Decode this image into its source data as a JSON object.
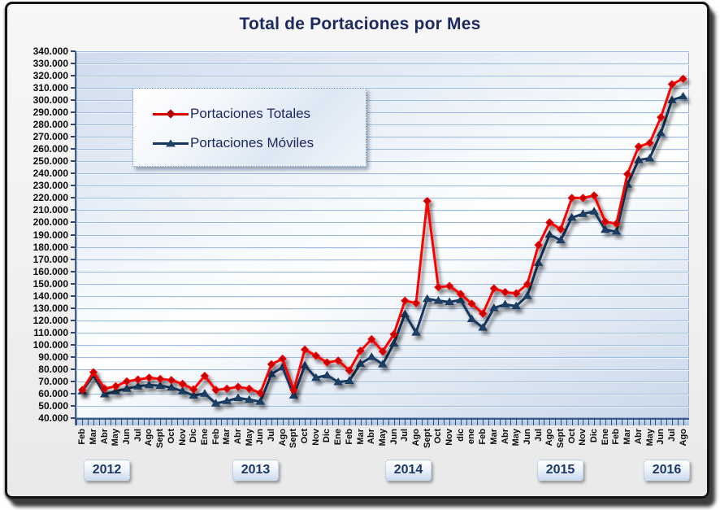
{
  "title": "Total de Portaciones por Mes",
  "legend": {
    "items": [
      {
        "label": "Portaciones Totales",
        "marker": "diamond",
        "color": "#e00000"
      },
      {
        "label": "Portaciones Móviles",
        "marker": "triangle",
        "color": "#17375e"
      }
    ]
  },
  "y_axis": {
    "min": 40000,
    "max": 340000,
    "step": 10000,
    "labels": [
      "340.000",
      "330.000",
      "320.000",
      "310.000",
      "300.000",
      "290.000",
      "280.000",
      "270.000",
      "260.000",
      "250.000",
      "240.000",
      "230.000",
      "220.000",
      "210.000",
      "200.000",
      "190.000",
      "180.000",
      "170.000",
      "160.000",
      "150.000",
      "140.000",
      "130.000",
      "120.000",
      "110.000",
      "100.000",
      "90.000",
      "80.000",
      "70.000",
      "60.000",
      "50.000",
      "40.000"
    ]
  },
  "x_axis": {
    "months": [
      "Feb",
      "Mar",
      "Abr",
      "May",
      "Jun",
      "Jul",
      "Ago",
      "Sept",
      "Oct",
      "Nov",
      "Dic",
      "Ene",
      "Feb",
      "Mar",
      "Abr",
      "May",
      "Jun",
      "Jul",
      "Ago",
      "Sept",
      "Oct",
      "Nov",
      "Dic",
      "Ene",
      "Feb",
      "Mar",
      "Abr",
      "May",
      "Jun",
      "Jul",
      "Ago",
      "Sept",
      "Oct",
      "Nov",
      "dic",
      "ene",
      "Feb",
      "Mar",
      "Abr",
      "May",
      "Jun",
      "Jul",
      "Ago",
      "Sept",
      "Oct",
      "Nov",
      "Dic",
      "Ene",
      "Feb",
      "Mar",
      "Abr",
      "May",
      "Jun",
      "Jul",
      "Ago"
    ],
    "years": [
      "2012",
      "2013",
      "2014",
      "2015",
      "2016"
    ]
  },
  "chart_data": {
    "type": "line",
    "title": "Total de Portaciones por Mes",
    "xlabel": "",
    "ylabel": "",
    "ylim": [
      40000,
      340000
    ],
    "grid": true,
    "legend_position": "upper-left-inside",
    "categories": [
      "Feb 2012",
      "Mar 2012",
      "Abr 2012",
      "May 2012",
      "Jun 2012",
      "Jul 2012",
      "Ago 2012",
      "Sept 2012",
      "Oct 2012",
      "Nov 2012",
      "Dic 2012",
      "Ene 2013",
      "Feb 2013",
      "Mar 2013",
      "Abr 2013",
      "May 2013",
      "Jun 2013",
      "Jul 2013",
      "Ago 2013",
      "Sept 2013",
      "Oct 2013",
      "Nov 2013",
      "Dic 2013",
      "Ene 2014",
      "Feb 2014",
      "Mar 2014",
      "Abr 2014",
      "May 2014",
      "Jun 2014",
      "Jul 2014",
      "Ago 2014",
      "Sept 2014",
      "Oct 2014",
      "Nov 2014",
      "Dic 2014",
      "Ene 2015",
      "Feb 2015",
      "Mar 2015",
      "Abr 2015",
      "May 2015",
      "Jun 2015",
      "Jul 2015",
      "Ago 2015",
      "Sept 2015",
      "Oct 2015",
      "Nov 2015",
      "Dic 2015",
      "Ene 2016",
      "Feb 2016",
      "Mar 2016",
      "Abr 2016",
      "May 2016",
      "Jun 2016",
      "Jul 2016",
      "Ago 2016"
    ],
    "series": [
      {
        "name": "Portaciones Totales",
        "color": "#e00000",
        "marker": "diamond",
        "values": [
          63000,
          77500,
          64000,
          66000,
          70000,
          71500,
          73000,
          72000,
          71000,
          68000,
          63500,
          74500,
          63000,
          64000,
          65500,
          64000,
          60500,
          84000,
          88500,
          63000,
          96000,
          91000,
          85500,
          87000,
          79000,
          95000,
          104500,
          94500,
          108500,
          136000,
          134000,
          217500,
          147000,
          148000,
          141500,
          133500,
          125500,
          146000,
          143000,
          142000,
          149500,
          181500,
          200000,
          194500,
          220000,
          220000,
          222000,
          200500,
          199000,
          239500,
          262000,
          265000,
          286000,
          313000,
          317500
        ]
      },
      {
        "name": "Portaciones Móviles",
        "color": "#17375e",
        "marker": "triangle",
        "values": [
          62000,
          75000,
          59500,
          62000,
          64000,
          66000,
          67000,
          66500,
          65000,
          62000,
          58500,
          60000,
          52000,
          54000,
          56500,
          55000,
          53500,
          76000,
          81500,
          58500,
          83000,
          73000,
          75000,
          69500,
          70500,
          84500,
          90000,
          84000,
          101000,
          125000,
          110000,
          137500,
          136000,
          135000,
          136500,
          121000,
          114000,
          130000,
          133000,
          131500,
          140000,
          167000,
          190000,
          185500,
          204000,
          207000,
          209000,
          194000,
          192500,
          231000,
          251000,
          252500,
          273000,
          300000,
          303000
        ]
      }
    ]
  }
}
